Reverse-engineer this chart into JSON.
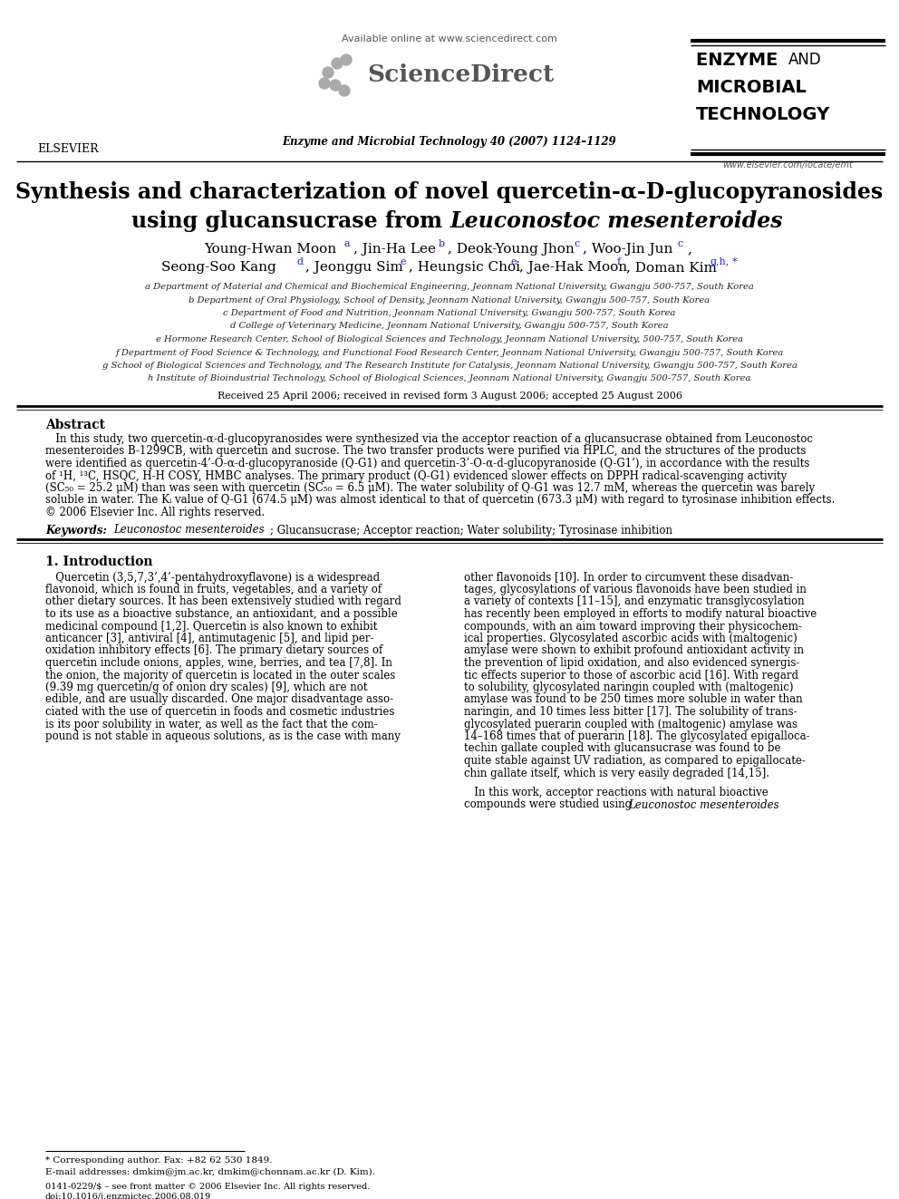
{
  "bg_color": "#ffffff",
  "available_online": "Available online at www.sciencedirect.com",
  "journal_line": "Enzyme and Microbial Technology 40 (2007) 1124–1129",
  "elsevier_url": "www.elsevier.com/locate/emt",
  "title_line1": "Synthesis and characterization of novel quercetin-α-D-glucopyranosides",
  "title_line2_regular": "using glucansucrase from ",
  "title_line2_italic": "Leuconostoc mesenteroides",
  "author1": "Young-Hwan Moon",
  "author1_sup": "a",
  "author2": ", Jin-Ha Lee",
  "author2_sup": "b",
  "author3": ", Deok-Young Jhon",
  "author3_sup": "c",
  "author4": ", Woo-Jin Jun",
  "author4_sup": "c",
  "author5": "Seong-Soo Kang",
  "author5_sup": "d",
  "author6": ", Jeonggu Sim",
  "author6_sup": "e",
  "author7": ", Heungsic Choi",
  "author7_sup": "e",
  "author8": ", Jae-Hak Moon",
  "author8_sup": "f",
  "author9": ", Doman Kim",
  "author9_sup": "g,h,*",
  "affil_a": "a Department of Material and Chemical and Biochemical Engineering, Jeonnam National University, Gwangju 500-757, South Korea",
  "affil_b": "b Department of Oral Physiology, School of Density, Jeonnam National University, Gwangju 500-757, South Korea",
  "affil_c": "c Department of Food and Nutrition, Jeonnam National University, Gwangju 500-757, South Korea",
  "affil_d": "d College of Veterinary Medicine, Jeonnam National University, Gwangju 500-757, South Korea",
  "affil_e": "e Hormone Research Center, School of Biological Sciences and Technology, Jeonnam National University, 500-757, South Korea",
  "affil_f": "f Department of Food Science & Technology, and Functional Food Research Center, Jeonnam National University, Gwangju 500-757, South Korea",
  "affil_g": "g School of Biological Sciences and Technology, and The Research Institute for Catalysis, Jeonnam National University, Gwangju 500-757, South Korea",
  "affil_h": "h Institute of Bioindustrial Technology, School of Biological Sciences, Jeonnam National University, Gwangju 500-757, South Korea",
  "received": "Received 25 April 2006; received in revised form 3 August 2006; accepted 25 August 2006",
  "abstract_title": "Abstract",
  "abstract_lines": [
    "   In this study, two quercetin-α-d-glucopyranosides were synthesized via the acceptor reaction of a glucansucrase obtained from Leuconostoc",
    "mesenteroides B-1299CB, with quercetin and sucrose. The two transfer products were purified via HPLC, and the structures of the products",
    "were identified as quercetin-4’-O-α-d-glucopyranoside (Q-G1) and quercetin-3’-O-α-d-glucopyranoside (Q-G1’), in accordance with the results",
    "of ¹H, ¹³C, HSQC, H-H COSY, HMBC analyses. The primary product (Q-G1) evidenced slower effects on DPPH radical-scavenging activity",
    "(SC₅₀ = 25.2 μM) than was seen with quercetin (SC₅₀ = 6.5 μM). The water solubility of Q-G1 was 12.7 mM, whereas the quercetin was barely",
    "soluble in water. The Kᵢ value of Q-G1 (674.5 μM) was almost identical to that of quercetin (673.3 μM) with regard to tyrosinase inhibition effects.",
    "© 2006 Elsevier Inc. All rights reserved."
  ],
  "keywords_italic": "Keywords:  Leuconostoc mesenteroides",
  "keywords_rest": "; Glucansucrase; Acceptor reaction; Water solubility; Tyrosinase inhibition",
  "section1_title": "1. Introduction",
  "col1_lines": [
    "   Quercetin (3,5,7,3’,4’-pentahydroxyflavone) is a widespread",
    "flavonoid, which is found in fruits, vegetables, and a variety of",
    "other dietary sources. It has been extensively studied with regard",
    "to its use as a bioactive substance, an antioxidant, and a possible",
    "medicinal compound [1,2]. Quercetin is also known to exhibit",
    "anticancer [3], antiviral [4], antimutagenic [5], and lipid per-",
    "oxidation inhibitory effects [6]. The primary dietary sources of",
    "quercetin include onions, apples, wine, berries, and tea [7,8]. In",
    "the onion, the majority of quercetin is located in the outer scales",
    "(9.39 mg quercetin/g of onion dry scales) [9], which are not",
    "edible, and are usually discarded. One major disadvantage asso-",
    "ciated with the use of quercetin in foods and cosmetic industries",
    "is its poor solubility in water, as well as the fact that the com-",
    "pound is not stable in aqueous solutions, as is the case with many"
  ],
  "col2_lines": [
    "other flavonoids [10]. In order to circumvent these disadvan-",
    "tages, glycosylations of various flavonoids have been studied in",
    "a variety of contexts [11–15], and enzymatic transglycosylation",
    "has recently been employed in efforts to modify natural bioactive",
    "compounds, with an aim toward improving their physicochem-",
    "ical properties. Glycosylated ascorbic acids with (maltogenic)",
    "amylase were shown to exhibit profound antioxidant activity in",
    "the prevention of lipid oxidation, and also evidenced synergis-",
    "tic effects superior to those of ascorbic acid [16]. With regard",
    "to solubility, glycosylated naringin coupled with (maltogenic)",
    "amylase was found to be 250 times more soluble in water than",
    "naringin, and 10 times less bitter [17]. The solubility of trans-",
    "glycosylated puerarin coupled with (maltogenic) amylase was",
    "14–168 times that of puerarin [18]. The glycosylated epigalloca-",
    "techin gallate coupled with glucansucrase was found to be",
    "quite stable against UV radiation, as compared to epigallocate-",
    "chin gallate itself, which is very easily degraded [14,15]."
  ],
  "col2_p2_line1": "   In this work, acceptor reactions with natural bioactive",
  "col2_p2_line2_reg": "compounds were studied using ",
  "col2_p2_line2_ital": "Leuconostoc mesenteroides",
  "footnote_line": "* Corresponding author. Fax: +82 62 530 1849.",
  "footnote_email": "E-mail addresses: dmkim@jm.ac.kr, dmkim@chonnam.ac.kr (D. Kim).",
  "bottom_line1": "0141-0229/$ – see front matter © 2006 Elsevier Inc. All rights reserved.",
  "bottom_line2": "doi:10.1016/j.enzmictec.2006.08.019"
}
